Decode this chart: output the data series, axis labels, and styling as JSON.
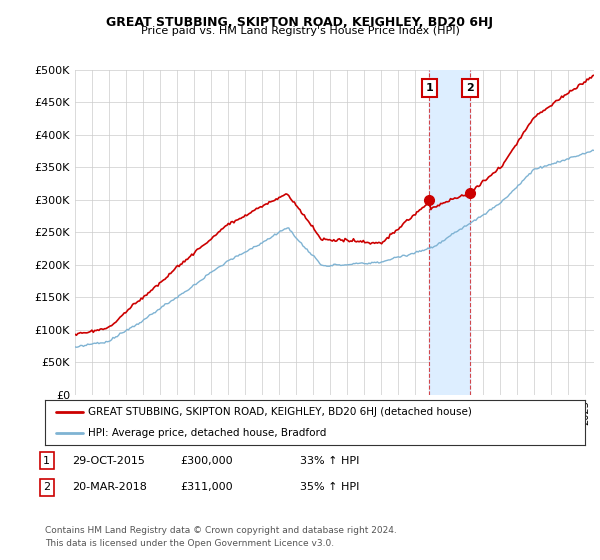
{
  "title": "GREAT STUBBING, SKIPTON ROAD, KEIGHLEY, BD20 6HJ",
  "subtitle": "Price paid vs. HM Land Registry's House Price Index (HPI)",
  "ylabel_ticks": [
    "£0",
    "£50K",
    "£100K",
    "£150K",
    "£200K",
    "£250K",
    "£300K",
    "£350K",
    "£400K",
    "£450K",
    "£500K"
  ],
  "ylim": [
    0,
    500000
  ],
  "xlim_start": 1995.0,
  "xlim_end": 2025.5,
  "sale1_x": 2015.83,
  "sale1_y": 300000,
  "sale1_label": "1",
  "sale2_x": 2018.22,
  "sale2_y": 311000,
  "sale2_label": "2",
  "red_color": "#cc0000",
  "blue_color": "#7fb3d3",
  "annotation_box_color": "#cc0000",
  "shaded_region_color": "#ddeeff",
  "legend_label_red": "GREAT STUBBING, SKIPTON ROAD, KEIGHLEY, BD20 6HJ (detached house)",
  "legend_label_blue": "HPI: Average price, detached house, Bradford",
  "footer": "Contains HM Land Registry data © Crown copyright and database right 2024.\nThis data is licensed under the Open Government Licence v3.0.",
  "background_color": "#ffffff",
  "grid_color": "#cccccc",
  "fig_width": 6.0,
  "fig_height": 5.6,
  "dpi": 100
}
